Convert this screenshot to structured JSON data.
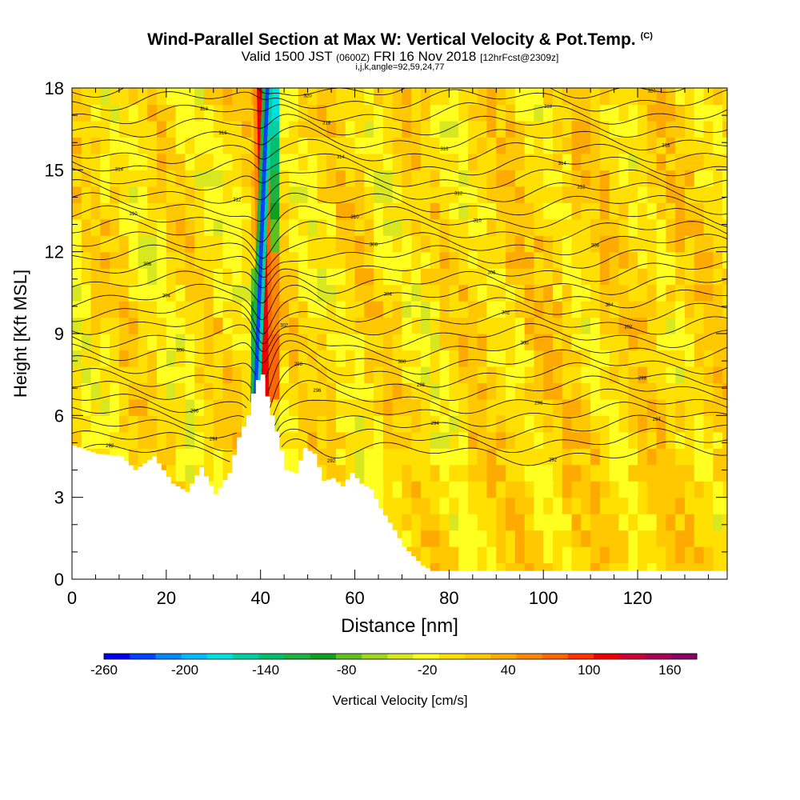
{
  "titles": {
    "main": "Wind-Parallel Section at Max W: Vertical Velocity & Pot.Temp.",
    "copyright": "(C)",
    "valid_a": "Valid 1500 JST",
    "valid_zulu": "(0600Z)",
    "valid_b": "FRI 16 Nov 2018",
    "valid_fcst": "[12hrFcst@2309z]",
    "indices": "i,j,k,angle=92,59,24,77"
  },
  "chart_data": {
    "type": "heatmap",
    "xlabel": "Distance [nm]",
    "ylabel": "Height [Kft MSL]",
    "xlim": [
      0,
      139
    ],
    "ylim": [
      0,
      18
    ],
    "x_ticks": [
      "0",
      "20",
      "40",
      "60",
      "80",
      "100",
      "120"
    ],
    "x_tick_values": [
      0,
      20,
      40,
      60,
      80,
      100,
      120
    ],
    "y_ticks": [
      "0",
      "3",
      "6",
      "9",
      "12",
      "15",
      "18"
    ],
    "y_tick_values": [
      0,
      3,
      6,
      9,
      12,
      15,
      18
    ],
    "colorbar": {
      "label": "Vertical Velocity [cm/s]",
      "min": -260,
      "max": 180,
      "step": 20,
      "tick_labels": [
        "-260",
        "-200",
        "-140",
        "-80",
        "-20",
        "40",
        "100",
        "160"
      ],
      "tick_values": [
        -260,
        -200,
        -140,
        -80,
        -20,
        40,
        100,
        160
      ],
      "colors": [
        "#0000ee",
        "#0044ff",
        "#0088ff",
        "#00bbff",
        "#00e0e0",
        "#00d0a0",
        "#00c070",
        "#20b040",
        "#10a020",
        "#60c020",
        "#a0d820",
        "#d8e820",
        "#ffff20",
        "#ffe000",
        "#ffc800",
        "#ffaa00",
        "#ff8800",
        "#ff6600",
        "#ff3300",
        "#ee0000",
        "#cc0033",
        "#aa0055",
        "#880066"
      ]
    },
    "terrain_profile": {
      "x": [
        0,
        5,
        10,
        13,
        17,
        21,
        24,
        27,
        30,
        33,
        35,
        37,
        38.5,
        40,
        41.5,
        43,
        45,
        47,
        49,
        51,
        53,
        55,
        57,
        59,
        61,
        63,
        65,
        68,
        70,
        74,
        76,
        80,
        130,
        139
      ],
      "height": [
        4.9,
        4.6,
        4.5,
        4.0,
        4.5,
        3.5,
        3.2,
        4.1,
        3.1,
        3.9,
        5.2,
        6.0,
        7.2,
        7.5,
        6.3,
        5.4,
        4.0,
        3.9,
        4.8,
        4.6,
        3.6,
        3.7,
        3.4,
        3.9,
        3.5,
        3.3,
        2.6,
        1.8,
        1.2,
        0.5,
        0.3,
        0.3,
        0.3,
        0.3
      ]
    },
    "updraft_core": {
      "x_at_bottom": 41,
      "x_at_top": 40,
      "y_range": [
        7,
        18
      ],
      "w_peak_cm_s": 130
    },
    "downdraft_core": {
      "x_at_bottom": 39,
      "x_at_top": 41.5,
      "y_range": [
        7.5,
        18
      ],
      "w_min_cm_s": -240
    },
    "theta_isentropes": {
      "count": 30,
      "label_values": [
        "292",
        "294",
        "296",
        "298",
        "300",
        "302",
        "304",
        "306",
        "308",
        "310",
        "312",
        "314",
        "316",
        "318",
        "320"
      ]
    }
  }
}
